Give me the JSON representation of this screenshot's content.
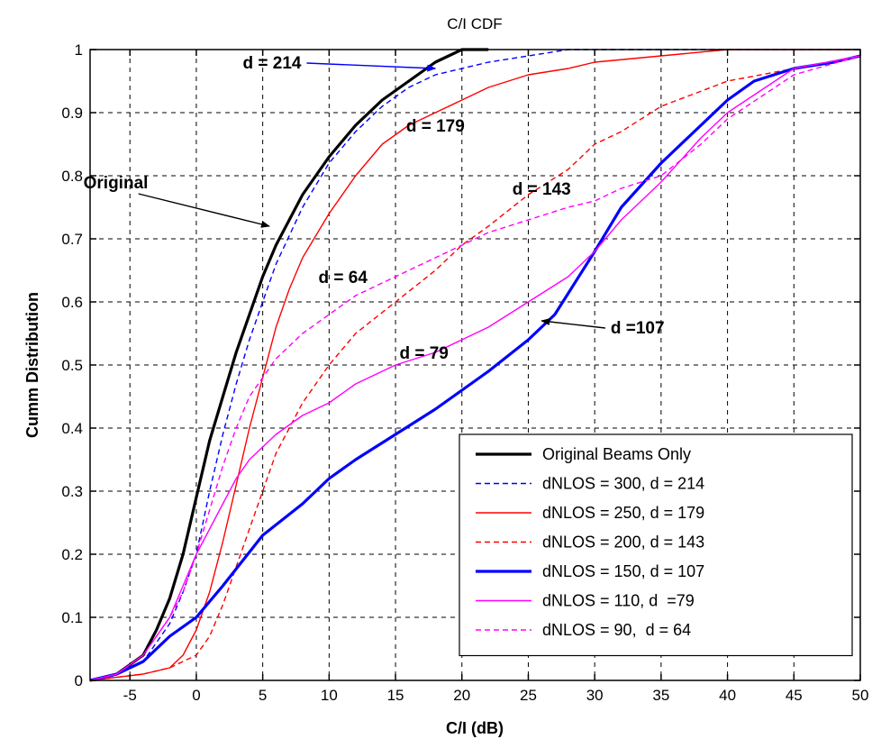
{
  "chart_data": {
    "type": "line",
    "title": "C/I CDF",
    "xlabel": "C/I (dB)",
    "ylabel": "Cumm Distribution",
    "xlim": [
      -8,
      50
    ],
    "ylim": [
      0,
      1
    ],
    "xticks": [
      -5,
      0,
      5,
      10,
      15,
      20,
      25,
      30,
      35,
      40,
      45,
      50
    ],
    "yticks": [
      0,
      0.1,
      0.2,
      0.3,
      0.4,
      0.5,
      0.6,
      0.7,
      0.8,
      0.9,
      1
    ],
    "xtick_labels": [
      "-5",
      "0",
      "5",
      "10",
      "15",
      "20",
      "25",
      "30",
      "35",
      "40",
      "45",
      "50"
    ],
    "ytick_labels": [
      "0",
      "0.1",
      "0.2",
      "0.3",
      "0.4",
      "0.5",
      "0.6",
      "0.7",
      "0.8",
      "0.9",
      "1"
    ],
    "grid": true,
    "legend_position": "bottom-right",
    "series": [
      {
        "name": "Original Beams Only",
        "color": "#000000",
        "dash": "solid",
        "width": "thick",
        "x": [
          -8,
          -6,
          -4,
          -3,
          -2,
          -1,
          0,
          1,
          2,
          3,
          4,
          5,
          6,
          8,
          10,
          12,
          14,
          16,
          18,
          20,
          22
        ],
        "y": [
          0,
          0.01,
          0.04,
          0.08,
          0.13,
          0.2,
          0.29,
          0.38,
          0.45,
          0.52,
          0.58,
          0.64,
          0.69,
          0.77,
          0.83,
          0.88,
          0.92,
          0.95,
          0.98,
          1.0,
          1.0
        ]
      },
      {
        "name": "dNLOS = 300, d = 214",
        "color": "#0000ff",
        "dash": "dashed",
        "width": "thin",
        "x": [
          -8,
          -6,
          -4,
          -2,
          -1,
          0,
          1,
          2,
          3,
          4,
          5,
          6,
          8,
          10,
          12,
          14,
          16,
          18,
          20,
          22,
          25,
          28,
          30,
          35,
          50
        ],
        "y": [
          0,
          0.01,
          0.03,
          0.09,
          0.14,
          0.2,
          0.3,
          0.39,
          0.47,
          0.54,
          0.6,
          0.66,
          0.75,
          0.82,
          0.87,
          0.91,
          0.94,
          0.96,
          0.97,
          0.98,
          0.99,
          1.0,
          1.0,
          1.0,
          1.0
        ]
      },
      {
        "name": "dNLOS = 250, d = 179",
        "color": "#ff0000",
        "dash": "solid",
        "width": "thin",
        "x": [
          -8,
          -4,
          -2,
          -1,
          0,
          1,
          2,
          3,
          4,
          5,
          6,
          7,
          8,
          10,
          12,
          14,
          16,
          18,
          20,
          22,
          25,
          28,
          30,
          35,
          40,
          50
        ],
        "y": [
          0,
          0.01,
          0.02,
          0.04,
          0.08,
          0.14,
          0.22,
          0.31,
          0.4,
          0.48,
          0.56,
          0.62,
          0.67,
          0.74,
          0.8,
          0.85,
          0.88,
          0.9,
          0.92,
          0.94,
          0.96,
          0.97,
          0.98,
          0.99,
          1.0,
          1.0
        ]
      },
      {
        "name": "dNLOS = 200, d = 143",
        "color": "#ff0000",
        "dash": "dashed",
        "width": "thin",
        "x": [
          -8,
          -4,
          -2,
          0,
          1,
          2,
          3,
          4,
          5,
          6,
          8,
          10,
          12,
          15,
          18,
          20,
          22,
          25,
          28,
          30,
          32,
          35,
          40,
          45,
          50
        ],
        "y": [
          0,
          0.01,
          0.02,
          0.04,
          0.07,
          0.12,
          0.18,
          0.24,
          0.3,
          0.36,
          0.44,
          0.5,
          0.55,
          0.6,
          0.65,
          0.69,
          0.72,
          0.77,
          0.81,
          0.85,
          0.87,
          0.91,
          0.95,
          0.97,
          0.99
        ]
      },
      {
        "name": "dNLOS = 150, d = 107",
        "color": "#0000ff",
        "dash": "solid",
        "width": "thick",
        "x": [
          -8,
          -6,
          -4,
          -2,
          0,
          2,
          5,
          8,
          10,
          12,
          15,
          18,
          20,
          22,
          25,
          27,
          30,
          32,
          35,
          38,
          40,
          42,
          45,
          48,
          50
        ],
        "y": [
          0,
          0.01,
          0.03,
          0.07,
          0.1,
          0.15,
          0.23,
          0.28,
          0.32,
          0.35,
          0.39,
          0.43,
          0.46,
          0.49,
          0.54,
          0.58,
          0.68,
          0.75,
          0.82,
          0.88,
          0.92,
          0.95,
          0.97,
          0.98,
          0.99
        ]
      },
      {
        "name": "dNLOS = 110, d  =79",
        "color": "#ff00ff",
        "dash": "solid",
        "width": "thin",
        "x": [
          -8,
          -6,
          -4,
          -2,
          -1,
          0,
          1,
          2,
          3,
          4,
          5,
          6,
          8,
          10,
          12,
          15,
          18,
          20,
          22,
          25,
          28,
          30,
          32,
          35,
          38,
          40,
          45,
          50
        ],
        "y": [
          0,
          0.01,
          0.04,
          0.1,
          0.15,
          0.2,
          0.24,
          0.28,
          0.32,
          0.35,
          0.37,
          0.39,
          0.42,
          0.44,
          0.47,
          0.5,
          0.52,
          0.54,
          0.56,
          0.6,
          0.64,
          0.68,
          0.73,
          0.79,
          0.86,
          0.9,
          0.97,
          0.99
        ]
      },
      {
        "name": "dNLOS = 90,  d = 64",
        "color": "#ff00ff",
        "dash": "dashed",
        "width": "thin",
        "x": [
          -8,
          -6,
          -4,
          -2,
          -1,
          0,
          1,
          2,
          3,
          4,
          5,
          6,
          8,
          10,
          12,
          15,
          18,
          20,
          22,
          25,
          28,
          30,
          32,
          35,
          38,
          40,
          45,
          50
        ],
        "y": [
          0,
          0.01,
          0.04,
          0.1,
          0.14,
          0.2,
          0.27,
          0.34,
          0.4,
          0.45,
          0.48,
          0.51,
          0.55,
          0.58,
          0.61,
          0.64,
          0.67,
          0.69,
          0.71,
          0.73,
          0.75,
          0.76,
          0.78,
          0.8,
          0.85,
          0.89,
          0.96,
          0.99
        ]
      }
    ],
    "annotations": [
      {
        "text": "d = 214",
        "x": 3.5,
        "y": 0.97,
        "arrow_to": [
          18,
          0.97
        ],
        "arrow_color": "#0000ff"
      },
      {
        "text": "d = 179",
        "x": 15.8,
        "y": 0.87
      },
      {
        "text": "d = 143",
        "x": 23.8,
        "y": 0.77
      },
      {
        "text": "Original",
        "x": -8.5,
        "y": 0.78,
        "arrow_to": [
          5.5,
          0.72
        ],
        "arrow_color": "#000000"
      },
      {
        "text": "d = 64",
        "x": 9.2,
        "y": 0.63
      },
      {
        "text": "d = 79",
        "x": 15.3,
        "y": 0.51
      },
      {
        "text": "d =107",
        "x": 31.2,
        "y": 0.55,
        "arrow_to": [
          26,
          0.57
        ],
        "arrow_color": "#000000"
      }
    ]
  }
}
